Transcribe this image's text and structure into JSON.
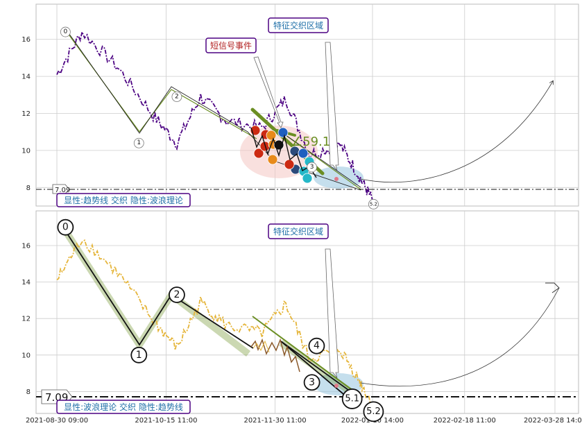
{
  "colors": {
    "grid": "#cccccc",
    "top_price": "#4b0082",
    "bottom_price": "#e5b53a",
    "trend": "#6b8e23",
    "callout_border": "#4b0082",
    "callout_text": "#1f6fa8",
    "signal_text": "#b22222",
    "angle_text": "#6b8e23",
    "zone_fill": "#9ecae1",
    "event_zone_fill": "#f4c7c3"
  },
  "top": {
    "callout_zone": "特征交织区域",
    "callout_signal": "短信号事件",
    "angle_label": "∠59.1°",
    "level_label": "7.09",
    "footer": "显性:趋势线 交织 隐性:波浪理论",
    "wave_labels": [
      "0",
      "1",
      "2",
      "3",
      "5.2"
    ]
  },
  "bottom": {
    "callout_zone": "特征交织区域",
    "level_label": "7.09",
    "footer": "显性:波浪理论 交织 隐性:趋势线",
    "wave_labels": [
      "0",
      "1",
      "2",
      "3",
      "4",
      "5.1",
      "5.2"
    ]
  },
  "chart_data": [
    {
      "type": "line",
      "panel": "top",
      "ylim": [
        7.0,
        17.9
      ],
      "yticks": [
        "8",
        "10",
        "12",
        "14",
        "16"
      ],
      "x": [
        "2021-08-30 09:00",
        "2021-09-10",
        "2021-09-25",
        "2021-10-10",
        "2021-10-20",
        "2021-10-30",
        "2021-11-10",
        "2021-11-25",
        "2021-12-05",
        "2021-12-15",
        "2021-12-28",
        "2022-01-05",
        "2022-01-10 14:00"
      ],
      "series": [
        {
          "values": [
            14.1,
            16.4,
            14.5,
            11.9,
            10.4,
            12.9,
            11.6,
            11.2,
            12.8,
            9.8,
            10.3,
            8.6,
            7.3
          ]
        }
      ],
      "level": 7.09,
      "waves": [
        {
          "label": "0",
          "x": "2021-09-03",
          "y": 16.4
        },
        {
          "label": "1",
          "x": "2021-10-04",
          "y": 10.4
        },
        {
          "label": "2",
          "x": "2021-10-20",
          "y": 12.9
        },
        {
          "label": "3",
          "x": "2021-12-16",
          "y": 9.1
        },
        {
          "label": "5.2",
          "x": "2022-01-11",
          "y": 7.1
        }
      ]
    },
    {
      "type": "line",
      "panel": "bottom",
      "xlabel_ticks": [
        "2021-08-30 09:00",
        "2021-10-15 11:00",
        "2021-11-30 11:00",
        "2022-01-10 14:00",
        "2022-02-18 11:00",
        "2022-03-28 14:00"
      ],
      "ylim": [
        6.8,
        17.9
      ],
      "yticks": [
        "8",
        "10",
        "12",
        "14",
        "16"
      ],
      "x": [
        "2021-08-30 09:00",
        "2021-09-10",
        "2021-09-25",
        "2021-10-10",
        "2021-10-20",
        "2021-10-30",
        "2021-11-10",
        "2021-11-25",
        "2021-12-05",
        "2021-12-15",
        "2021-12-28",
        "2022-01-05",
        "2022-01-10 14:00"
      ],
      "series": [
        {
          "values": [
            14.1,
            16.4,
            14.5,
            11.9,
            10.4,
            12.9,
            11.6,
            11.2,
            12.8,
            9.8,
            10.3,
            8.6,
            7.3
          ]
        }
      ],
      "level": 7.09,
      "waves": [
        {
          "label": "0",
          "x": "2021-09-03",
          "y": 17.0
        },
        {
          "label": "1",
          "x": "2021-10-04",
          "y": 10.0
        },
        {
          "label": "2",
          "x": "2021-10-20",
          "y": 13.3
        },
        {
          "label": "3",
          "x": "2021-12-16",
          "y": 8.5
        },
        {
          "label": "4",
          "x": "2021-12-18",
          "y": 10.5
        },
        {
          "label": "5.1",
          "x": "2022-01-02",
          "y": 7.6
        },
        {
          "label": "5.2",
          "x": "2022-01-11",
          "y": 6.9
        }
      ]
    }
  ]
}
